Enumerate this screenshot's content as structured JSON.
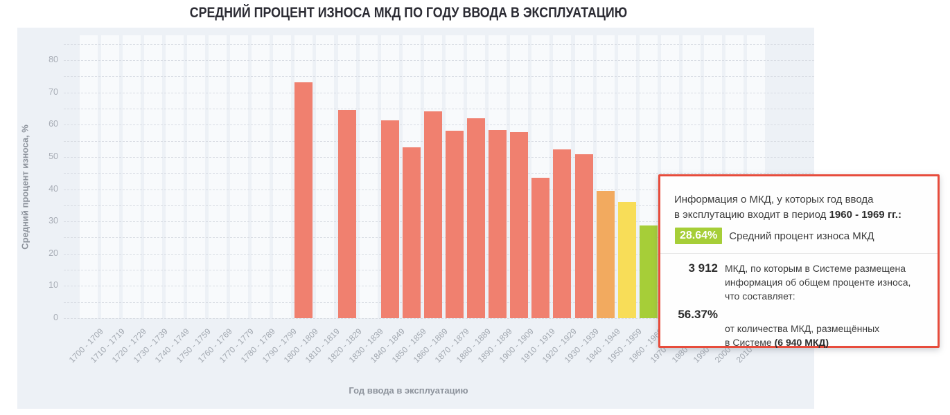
{
  "chart_data": {
    "type": "bar",
    "title": "СРЕДНИЙ ПРОЦЕНТ ИЗНОСА МКД ПО ГОДУ ВВОДА В ЭКСПЛУАТАЦИЮ",
    "xlabel": "Год ввода в эксплуатацию",
    "ylabel": "Средний процент износа, %",
    "ylim": [
      0,
      88
    ],
    "yticks": [
      0,
      10,
      20,
      30,
      40,
      50,
      60,
      70,
      80
    ],
    "grid": true,
    "legend_position": "none",
    "categories": [
      "1700 - 1709",
      "1710 - 1719",
      "1720 - 1729",
      "1730 - 1739",
      "1740 - 1749",
      "1750 - 1759",
      "1760 - 1769",
      "1770 - 1779",
      "1780 - 1789",
      "1790 - 1799",
      "1800 - 1809",
      "1810 - 1819",
      "1820 - 1829",
      "1830 - 1839",
      "1840 - 1849",
      "1850 - 1859",
      "1860 - 1869",
      "1870 - 1879",
      "1880 - 1889",
      "1890 - 1899",
      "1900 - 1909",
      "1910 - 1919",
      "1920 - 1929",
      "1930 - 1939",
      "1940 - 1949",
      "1950 - 1959",
      "1960 - 1969",
      "1970 - 1979",
      "1980 - 1989",
      "1990 - 1999",
      "2000 - 2009",
      "2010 - 2019"
    ],
    "values": [
      null,
      null,
      null,
      null,
      null,
      null,
      null,
      null,
      null,
      null,
      73.2,
      null,
      64.5,
      null,
      61.3,
      52.9,
      64.1,
      58.2,
      62,
      58.4,
      57.7,
      43.6,
      52.3,
      50.9,
      39.5,
      36.1,
      28.64,
      null,
      null,
      null,
      null,
      null
    ],
    "bar_color_default": "#f0806f",
    "bar_colors_by_category": {
      "1940 - 1949": "#f2aa5f",
      "1950 - 1959": "#f8dd58",
      "1960 - 1969": "#a6ce38"
    }
  },
  "colors": {
    "panel_background": "#edf1f6",
    "column_stripe": "#f8fafc",
    "gridline": "#d8dce3",
    "axis_label": "#a7acb5",
    "axis_title": "#8d939c",
    "title_text": "#2b2b33",
    "tooltip_border": "#e74c3c",
    "tooltip_badge": "#a6ce38"
  },
  "tooltip": {
    "header_text": "Информация о МКД, у которых год ввода\nв эксплутацию входит в период ",
    "header_bold": "1960 - 1969 гг.:",
    "badge_value": "28.64%",
    "badge_label": "Средний процент износа МКД",
    "row1_value": "3 912",
    "row1_text": "МКД, по которым в Системе размещена\nинформация об общем проценте износа,\nчто составляет:",
    "row2_value": "56.37%",
    "row2_text": "от количества МКД, размещённых\nв Системе ",
    "row2_bold": "(6 940 МКД)"
  }
}
